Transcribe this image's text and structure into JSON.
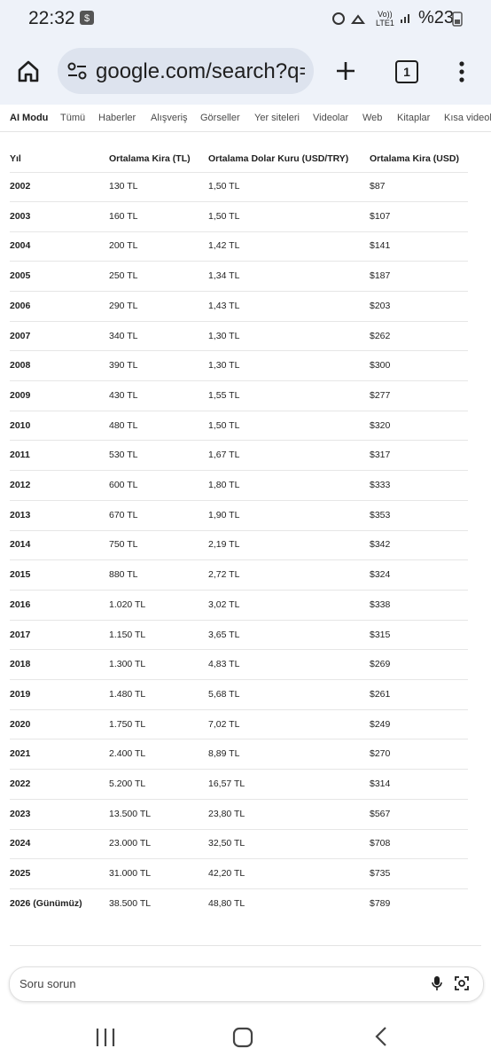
{
  "status_bar": {
    "time": "22:32",
    "volte": "Vo))",
    "lte": "LTE1",
    "battery": "%23"
  },
  "browser": {
    "url": "google.com/search?q=",
    "tab_count": "1"
  },
  "tabs": [
    "AI Modu",
    "Tümü",
    "Haberler",
    "Alışveriş",
    "Görseller",
    "Yer siteleri",
    "Videolar",
    "Web",
    "Kitaplar",
    "Kısa videolar"
  ],
  "table": {
    "headers": [
      "Yıl",
      "Ortalama Kira (TL)",
      "Ortalama Dolar Kuru (USD/TRY)",
      "Ortalama Kira (USD)"
    ],
    "rows": [
      [
        "2002",
        "130 TL",
        "1,50 TL",
        "$87"
      ],
      [
        "2003",
        "160 TL",
        "1,50 TL",
        "$107"
      ],
      [
        "2004",
        "200 TL",
        "1,42 TL",
        "$141"
      ],
      [
        "2005",
        "250 TL",
        "1,34 TL",
        "$187"
      ],
      [
        "2006",
        "290 TL",
        "1,43 TL",
        "$203"
      ],
      [
        "2007",
        "340 TL",
        "1,30 TL",
        "$262"
      ],
      [
        "2008",
        "390 TL",
        "1,30 TL",
        "$300"
      ],
      [
        "2009",
        "430 TL",
        "1,55 TL",
        "$277"
      ],
      [
        "2010",
        "480 TL",
        "1,50 TL",
        "$320"
      ],
      [
        "2011",
        "530 TL",
        "1,67 TL",
        "$317"
      ],
      [
        "2012",
        "600 TL",
        "1,80 TL",
        "$333"
      ],
      [
        "2013",
        "670 TL",
        "1,90 TL",
        "$353"
      ],
      [
        "2014",
        "750 TL",
        "2,19 TL",
        "$342"
      ],
      [
        "2015",
        "880 TL",
        "2,72 TL",
        "$324"
      ],
      [
        "2016",
        "1.020 TL",
        "3,02 TL",
        "$338"
      ],
      [
        "2017",
        "1.150 TL",
        "3,65 TL",
        "$315"
      ],
      [
        "2018",
        "1.300 TL",
        "4,83 TL",
        "$269"
      ],
      [
        "2019",
        "1.480 TL",
        "5,68 TL",
        "$261"
      ],
      [
        "2020",
        "1.750 TL",
        "7,02 TL",
        "$249"
      ],
      [
        "2021",
        "2.400 TL",
        "8,89 TL",
        "$270"
      ],
      [
        "2022",
        "5.200 TL",
        "16,57 TL",
        "$314"
      ],
      [
        "2023",
        "13.500 TL",
        "23,80 TL",
        "$567"
      ],
      [
        "2024",
        "23.000 TL",
        "32,50 TL",
        "$708"
      ],
      [
        "2025",
        "31.000 TL",
        "42,20 TL",
        "$735"
      ],
      [
        "2026 (Günümüz)",
        "38.500 TL",
        "48,80 TL",
        "$789"
      ]
    ]
  },
  "input": {
    "placeholder": "Soru sorun"
  }
}
